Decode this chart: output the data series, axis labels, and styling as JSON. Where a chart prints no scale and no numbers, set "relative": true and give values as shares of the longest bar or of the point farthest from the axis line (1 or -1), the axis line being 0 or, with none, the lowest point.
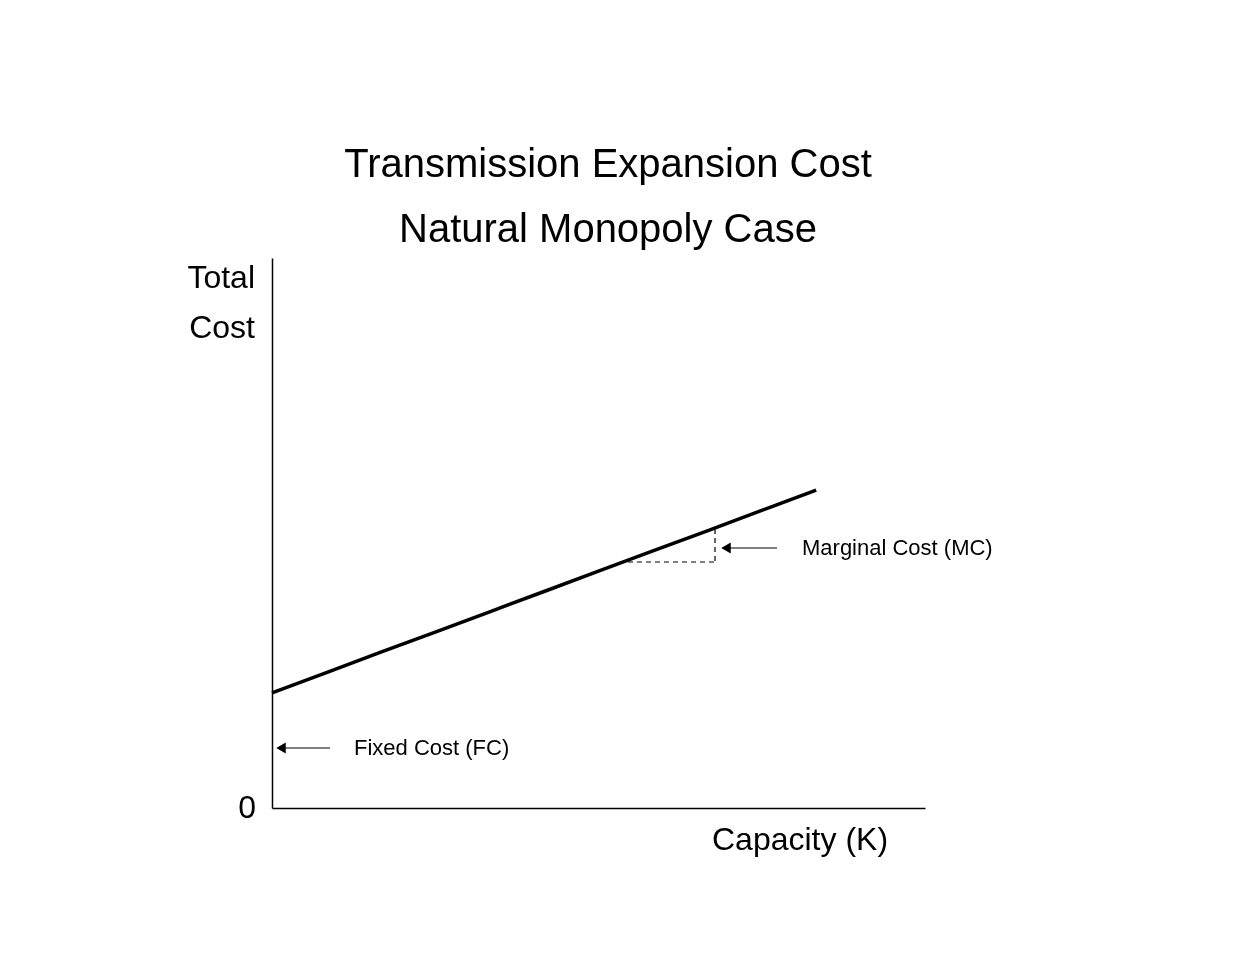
{
  "chart_data": {
    "type": "line",
    "relative": true,
    "title": [
      "Transmission Expansion Cost",
      "Natural Monopoly Case"
    ],
    "ylabel": [
      "Total",
      "Cost"
    ],
    "xlabel": "Capacity  (K)",
    "categories": [
      null,
      null,
      null,
      null,
      null,
      null,
      null,
      null,
      null,
      null,
      null,
      null,
      null
    ],
    "series": [
      {
        "color": "#000000",
        "line_style": "solid",
        "values": [
          0.362,
          0.426,
          0.49,
          0.553,
          0.617,
          0.681,
          0.745,
          0.809,
          0.872,
          0.936,
          1.0,
          null,
          null
        ]
      }
    ],
    "annotations": [
      "0",
      "Fixed Cost (FC)",
      "Marginal Cost (MC)"
    ],
    "grid": false,
    "legend": false,
    "marker": "none"
  }
}
